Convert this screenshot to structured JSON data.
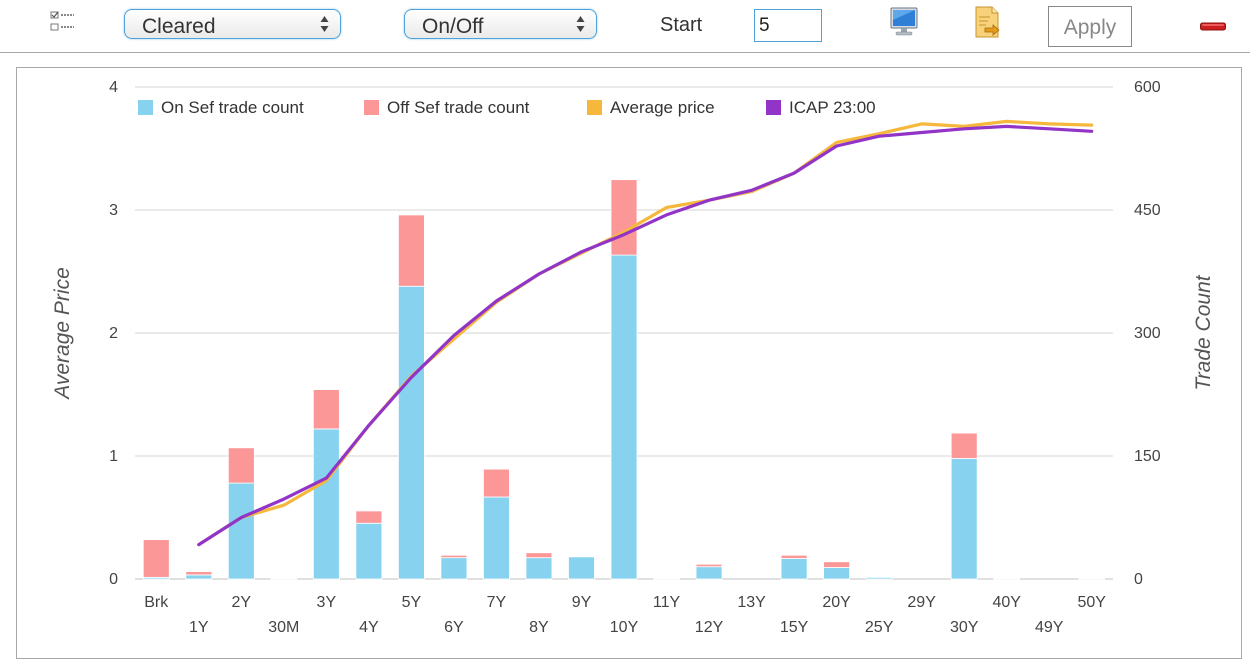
{
  "toolbar": {
    "checklist_icon": "checklist-icon",
    "clearing_select": {
      "value": "Cleared"
    },
    "sef_select": {
      "value": "On/Off"
    },
    "start_label": "Start",
    "start_value": "5",
    "monitor_icon": "monitor-icon",
    "export_icon": "export-icon",
    "apply_label": "Apply",
    "remove_icon": "minus-icon",
    "colors": {
      "accent": "#4da3d9",
      "remove": "#cc1f1f"
    }
  },
  "chart_data": {
    "type": "bar",
    "stacked": true,
    "categories": [
      "Brk",
      "1Y",
      "2Y",
      "30M",
      "3Y",
      "4Y",
      "5Y",
      "6Y",
      "7Y",
      "8Y",
      "9Y",
      "10Y",
      "11Y",
      "12Y",
      "13Y",
      "15Y",
      "20Y",
      "25Y",
      "29Y",
      "30Y",
      "40Y",
      "49Y",
      "50Y"
    ],
    "left_axis": {
      "label": "Average Price",
      "min": 0,
      "max": 4,
      "ticks": [
        "0",
        "1",
        "2",
        "3",
        "4"
      ]
    },
    "right_axis": {
      "label": "Trade Count",
      "min": 0,
      "max": 600,
      "ticks": [
        "0",
        "150",
        "300",
        "450",
        "600"
      ]
    },
    "grid": true,
    "legend_position": "top-left",
    "series": [
      {
        "name": "On Sef trade count",
        "type": "bar",
        "axis": "right",
        "color": "#87d3ef",
        "values": [
          2,
          5,
          117,
          0,
          183,
          68,
          357,
          26,
          100,
          26,
          27,
          395,
          0,
          15,
          0,
          25,
          14,
          2,
          0,
          147,
          0,
          0,
          0
        ]
      },
      {
        "name": "Off Sef trade count",
        "type": "bar",
        "axis": "right",
        "color": "#fc9797",
        "values": [
          46,
          4,
          43,
          1,
          48,
          15,
          87,
          3,
          34,
          6,
          0,
          92,
          1,
          3,
          0,
          4,
          7,
          0,
          0,
          31,
          1,
          0,
          1
        ]
      },
      {
        "name": "Average price",
        "type": "line",
        "axis": "left",
        "color": "#f6b83c",
        "values": [
          null,
          0.28,
          0.5,
          0.6,
          0.8,
          1.25,
          1.65,
          1.95,
          2.25,
          2.48,
          2.65,
          2.82,
          3.02,
          3.08,
          3.15,
          3.3,
          3.55,
          3.62,
          3.7,
          3.68,
          3.72,
          3.7,
          3.69
        ]
      },
      {
        "name": "ICAP 23:00",
        "type": "line",
        "axis": "left",
        "color": "#9234c8",
        "values": [
          null,
          0.28,
          0.5,
          0.65,
          0.82,
          1.25,
          1.64,
          1.98,
          2.26,
          2.48,
          2.66,
          2.8,
          2.96,
          3.08,
          3.16,
          3.3,
          3.52,
          3.6,
          3.63,
          3.66,
          3.68,
          3.66,
          3.64
        ]
      }
    ]
  }
}
